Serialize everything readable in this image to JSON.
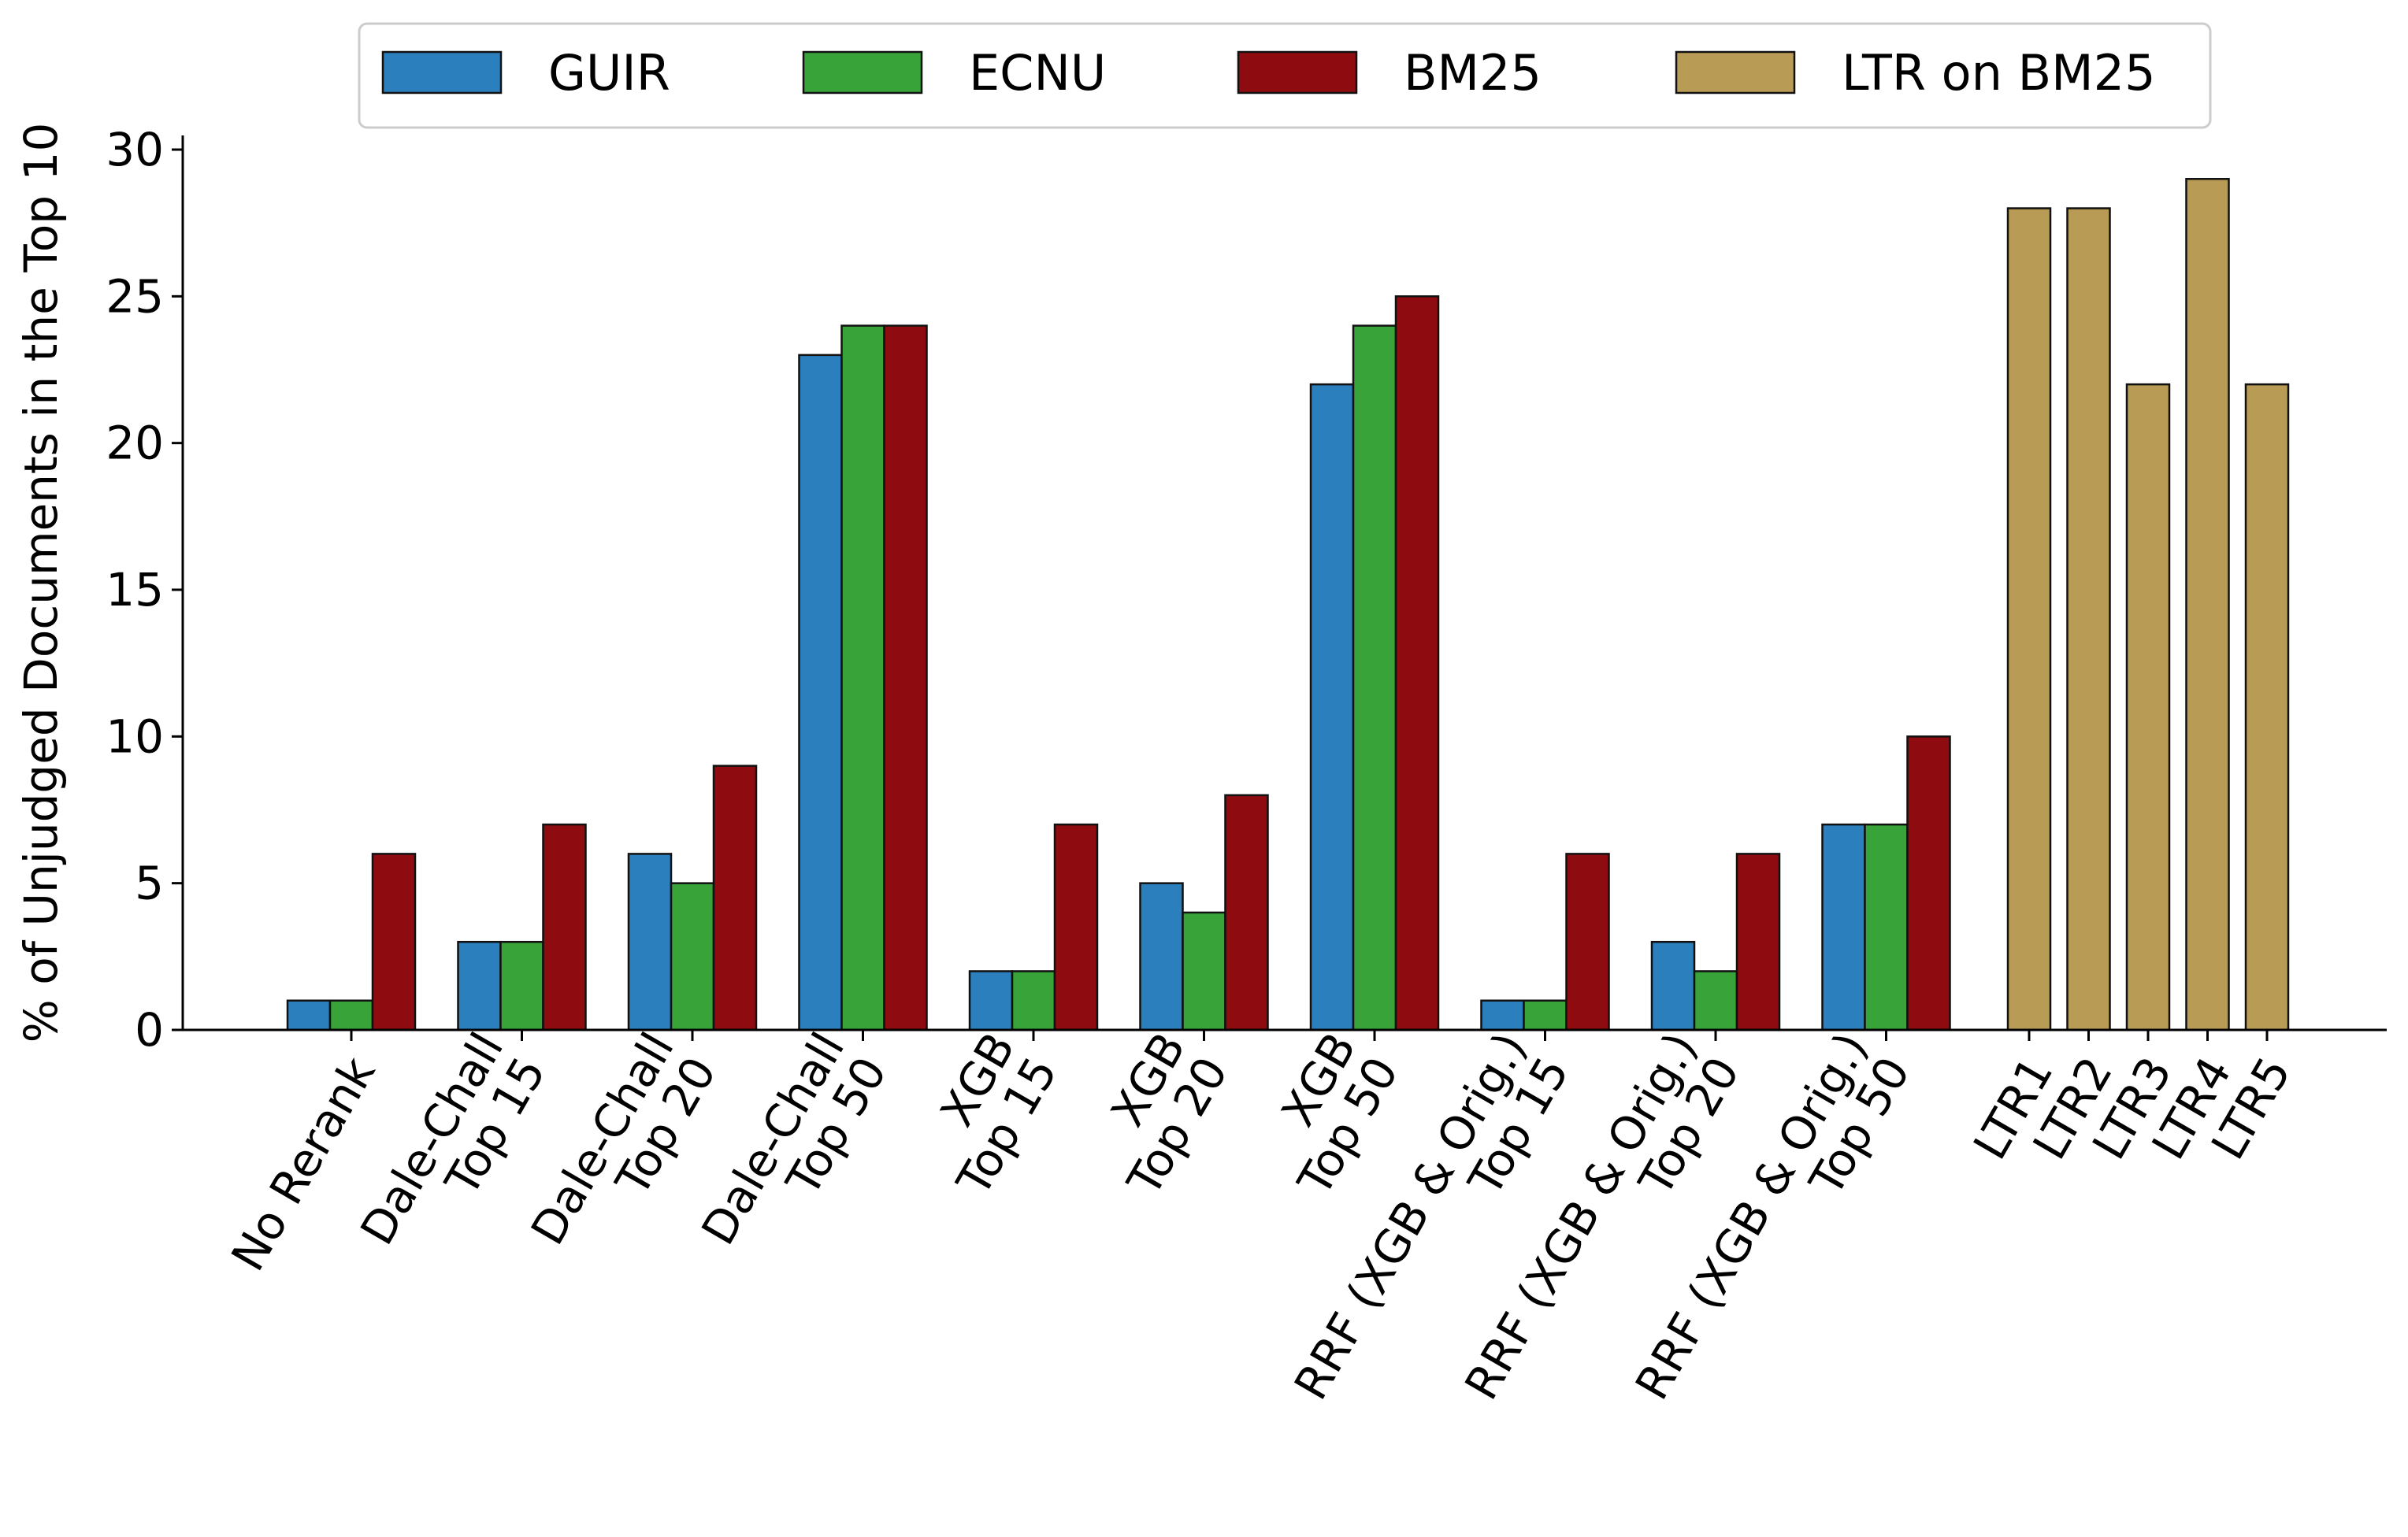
{
  "chart_data": {
    "type": "bar",
    "ylabel": "% of Unjudged Documents in the Top 10",
    "ylim": [
      0,
      30
    ],
    "yticks": [
      0,
      5,
      10,
      15,
      20,
      25,
      30
    ],
    "grid": false,
    "legend_position": "top",
    "categories": [
      {
        "lines": [
          "No Rerank"
        ]
      },
      {
        "lines": [
          "Dale-Chall",
          "Top 15"
        ]
      },
      {
        "lines": [
          "Dale-Chall",
          "Top 20"
        ]
      },
      {
        "lines": [
          "Dale-Chall",
          "Top 50"
        ]
      },
      {
        "lines": [
          "XGB",
          "Top 15"
        ]
      },
      {
        "lines": [
          "XGB",
          "Top 20"
        ]
      },
      {
        "lines": [
          "XGB",
          "Top 50"
        ]
      },
      {
        "lines": [
          "RRF (XGB & Orig.)",
          "Top 15"
        ]
      },
      {
        "lines": [
          "RRF (XGB & Orig.)",
          "Top 20"
        ]
      },
      {
        "lines": [
          "RRF (XGB & Orig.)",
          "Top 50"
        ]
      }
    ],
    "series": [
      {
        "name": "GUIR",
        "color": "#2b7fbd",
        "values": [
          1,
          3,
          6,
          23,
          2,
          5,
          22,
          1,
          3,
          7
        ]
      },
      {
        "name": "ECNU",
        "color": "#37a338",
        "values": [
          1,
          3,
          5,
          24,
          2,
          4,
          24,
          1,
          2,
          7
        ]
      },
      {
        "name": "BM25",
        "color": "#8e0c10",
        "values": [
          6,
          7,
          9,
          24,
          7,
          8,
          25,
          6,
          6,
          10
        ]
      }
    ],
    "ltr_series": {
      "name": "LTR on BM25",
      "color": "#b89b54",
      "categories": [
        "LTR1",
        "LTR2",
        "LTR3",
        "LTR4",
        "LTR5"
      ],
      "values": [
        28,
        28,
        22,
        29,
        22
      ]
    }
  }
}
